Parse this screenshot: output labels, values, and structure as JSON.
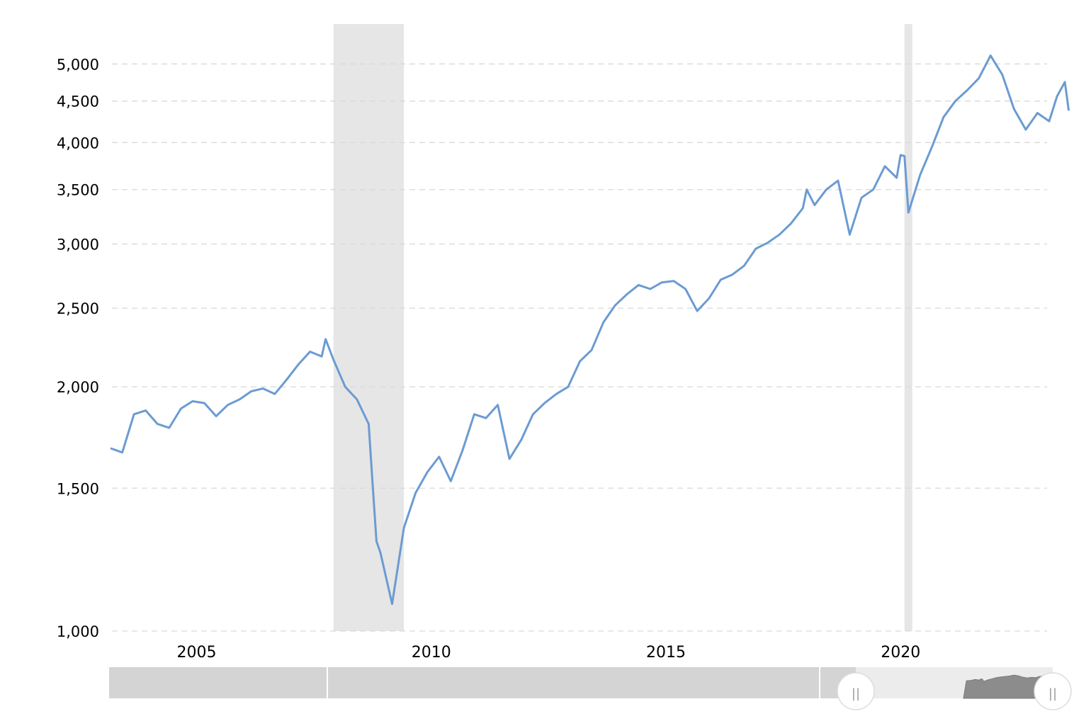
{
  "chart_data": {
    "type": "line",
    "title": "",
    "xlabel": "",
    "ylabel": "",
    "y_scale": "log",
    "ylim": [
      1000,
      5400
    ],
    "xlim": [
      "2003-03",
      "2023-03"
    ],
    "grid": "horizontal dashed",
    "line_color": "#6b9bd2",
    "recession_color": "#e6e6e6",
    "y_ticks": [
      1000,
      1500,
      2000,
      2500,
      3000,
      3500,
      4000,
      4500,
      5000
    ],
    "y_tick_labels": [
      "1,000",
      "1,500",
      "2,000",
      "2,500",
      "3,000",
      "3,500",
      "4,000",
      "4,500",
      "5,000"
    ],
    "x_ticks": [
      "2005",
      "2010",
      "2015",
      "2020"
    ],
    "recessions": [
      {
        "start": "2007-12",
        "end": "2009-06"
      },
      {
        "start": "2020-02",
        "end": "2020-04"
      }
    ],
    "series": [
      {
        "x": [
          "2003-03",
          "2003-06",
          "2003-09",
          "2003-12",
          "2004-03",
          "2004-06",
          "2004-09",
          "2004-12",
          "2005-03",
          "2005-06",
          "2005-09",
          "2005-12",
          "2006-03",
          "2006-06",
          "2006-09",
          "2006-12",
          "2007-03",
          "2007-06",
          "2007-09",
          "2007-10",
          "2007-12",
          "2008-03",
          "2008-06",
          "2008-09",
          "2008-10",
          "2008-11",
          "2008-12",
          "2009-03",
          "2009-06",
          "2009-09",
          "2009-12",
          "2010-03",
          "2010-06",
          "2010-09",
          "2010-12",
          "2011-03",
          "2011-06",
          "2011-09",
          "2011-12",
          "2012-03",
          "2012-06",
          "2012-09",
          "2012-12",
          "2013-03",
          "2013-06",
          "2013-09",
          "2013-12",
          "2014-03",
          "2014-06",
          "2014-09",
          "2014-12",
          "2015-03",
          "2015-06",
          "2015-09",
          "2015-12",
          "2016-03",
          "2016-06",
          "2016-09",
          "2016-12",
          "2017-03",
          "2017-06",
          "2017-09",
          "2017-12",
          "2018-01",
          "2018-03",
          "2018-06",
          "2018-09",
          "2018-12",
          "2019-03",
          "2019-06",
          "2019-09",
          "2019-12",
          "2020-01",
          "2020-02",
          "2020-03",
          "2020-06",
          "2020-09",
          "2020-12",
          "2021-03",
          "2021-06",
          "2021-09",
          "2021-12",
          "2022-03",
          "2022-06",
          "2022-09",
          "2022-12",
          "2023-03",
          "2023-05",
          "2023-07",
          "2023-08"
        ],
        "values": [
          1680,
          1660,
          1850,
          1870,
          1800,
          1780,
          1880,
          1920,
          1910,
          1840,
          1900,
          1930,
          1975,
          1990,
          1960,
          2040,
          2130,
          2210,
          2180,
          2290,
          2160,
          2000,
          1930,
          1800,
          1520,
          1290,
          1250,
          1080,
          1340,
          1480,
          1570,
          1640,
          1530,
          1670,
          1850,
          1830,
          1900,
          1630,
          1720,
          1850,
          1910,
          1960,
          2000,
          2150,
          2220,
          2400,
          2520,
          2600,
          2670,
          2640,
          2690,
          2700,
          2640,
          2480,
          2570,
          2710,
          2750,
          2820,
          2960,
          3010,
          3080,
          3180,
          3320,
          3500,
          3350,
          3500,
          3590,
          3080,
          3420,
          3500,
          3740,
          3620,
          3860,
          3850,
          3280,
          3650,
          3950,
          4300,
          4500,
          4640,
          4800,
          5120,
          4850,
          4400,
          4150,
          4350,
          4250,
          4560,
          4750,
          4380
        ]
      }
    ]
  },
  "navigator": {
    "handle_left_glyph": "||",
    "handle_right_glyph": "||"
  }
}
